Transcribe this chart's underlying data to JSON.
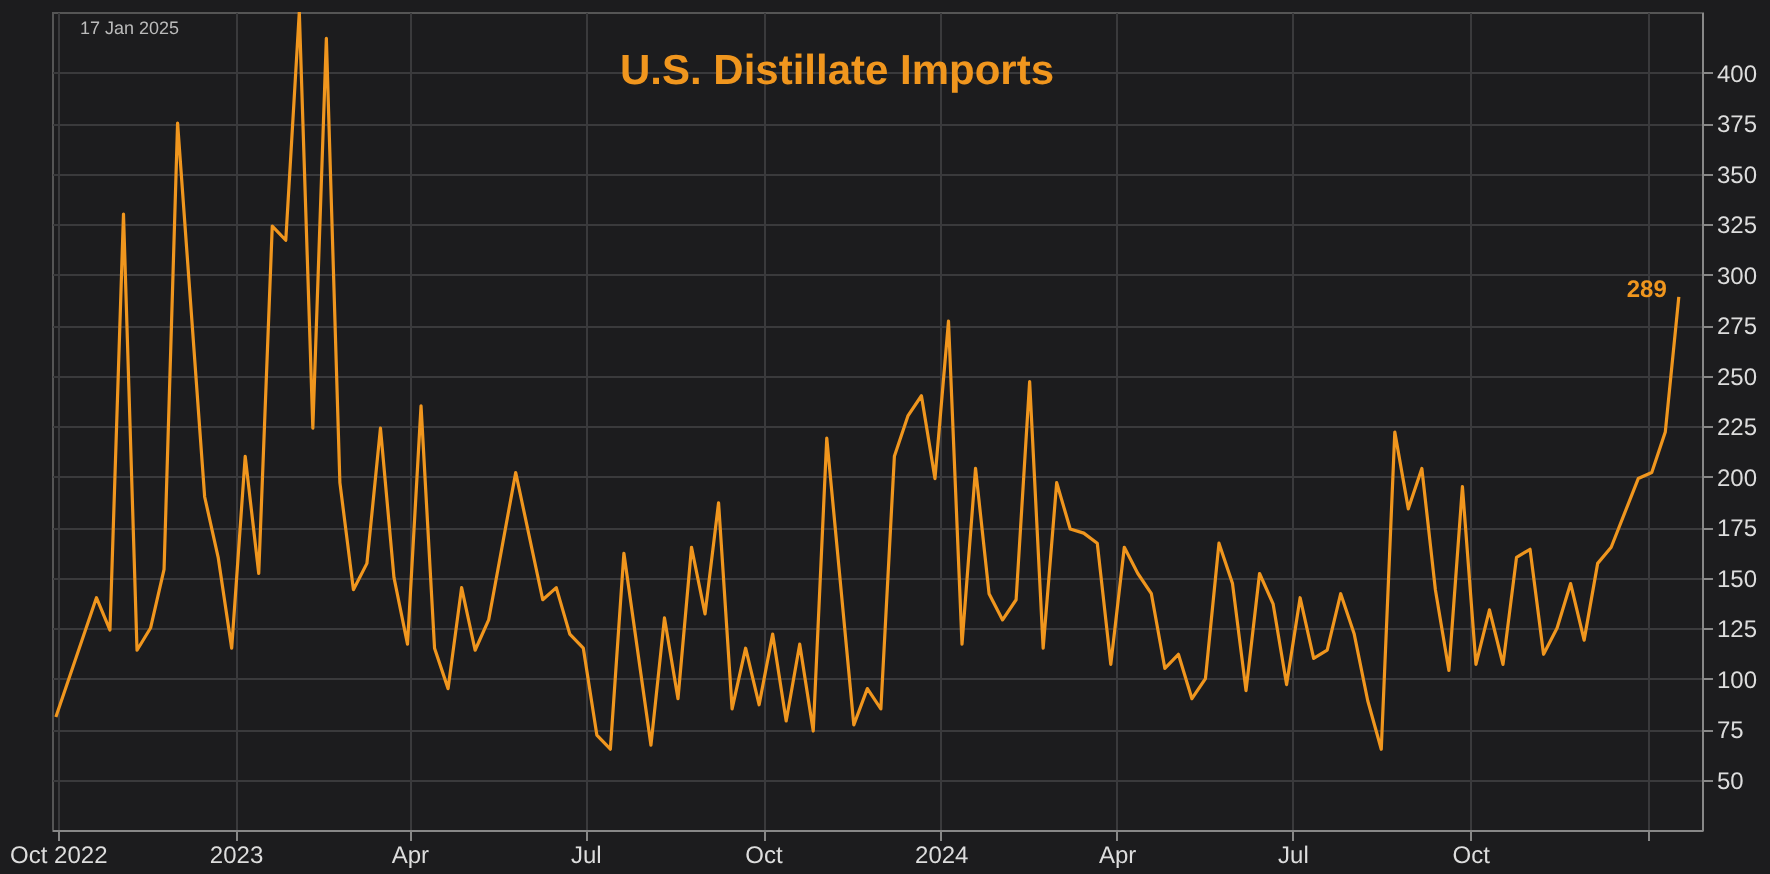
{
  "chart_data": {
    "type": "line",
    "title": "U.S. Distillate Imports",
    "x": [
      "2022-09-30",
      "2022-10-21",
      "2022-10-28",
      "2022-11-04",
      "2022-11-11",
      "2022-11-18",
      "2022-11-25",
      "2022-12-02",
      "2022-12-16",
      "2022-12-23",
      "2022-12-30",
      "2023-01-06",
      "2023-01-13",
      "2023-01-20",
      "2023-01-27",
      "2023-02-03",
      "2023-02-10",
      "2023-02-17",
      "2023-02-24",
      "2023-03-03",
      "2023-03-10",
      "2023-03-17",
      "2023-03-24",
      "2023-03-31",
      "2023-04-07",
      "2023-04-14",
      "2023-04-21",
      "2023-04-28",
      "2023-05-05",
      "2023-05-12",
      "2023-05-26",
      "2023-06-09",
      "2023-06-16",
      "2023-06-23",
      "2023-06-30",
      "2023-07-07",
      "2023-07-14",
      "2023-07-21",
      "2023-08-04",
      "2023-08-11",
      "2023-08-18",
      "2023-08-25",
      "2023-09-01",
      "2023-09-08",
      "2023-09-15",
      "2023-09-22",
      "2023-09-29",
      "2023-10-06",
      "2023-10-13",
      "2023-10-20",
      "2023-10-27",
      "2023-11-03",
      "2023-11-17",
      "2023-11-24",
      "2023-12-01",
      "2023-12-08",
      "2023-12-15",
      "2023-12-22",
      "2023-12-29",
      "2024-01-05",
      "2024-01-12",
      "2024-01-19",
      "2024-01-26",
      "2024-02-02",
      "2024-02-09",
      "2024-02-16",
      "2024-02-23",
      "2024-03-01",
      "2024-03-08",
      "2024-03-15",
      "2024-03-22",
      "2024-03-29",
      "2024-04-05",
      "2024-04-12",
      "2024-04-19",
      "2024-04-26",
      "2024-05-03",
      "2024-05-10",
      "2024-05-17",
      "2024-05-24",
      "2024-05-31",
      "2024-06-07",
      "2024-06-14",
      "2024-06-21",
      "2024-06-28",
      "2024-07-05",
      "2024-07-12",
      "2024-07-19",
      "2024-07-26",
      "2024-08-02",
      "2024-08-09",
      "2024-08-16",
      "2024-08-23",
      "2024-08-30",
      "2024-09-06",
      "2024-09-13",
      "2024-09-20",
      "2024-09-27",
      "2024-10-04",
      "2024-10-11",
      "2024-10-18",
      "2024-10-25",
      "2024-11-01",
      "2024-11-08",
      "2024-11-15",
      "2024-11-22",
      "2024-11-29",
      "2024-12-06",
      "2024-12-13",
      "2024-12-20",
      "2024-12-27",
      "2025-01-03",
      "2025-01-10",
      "2025-01-17"
    ],
    "series": [
      {
        "color": "#f0961e",
        "values": [
          81,
          140,
          124,
          330,
          114,
          125,
          154,
          375,
          190,
          160,
          115,
          210,
          152,
          324,
          317,
          430,
          224,
          417,
          197,
          144,
          157,
          224,
          150,
          117,
          235,
          115,
          95,
          145,
          114,
          129,
          202,
          139,
          145,
          122,
          115,
          72,
          65,
          162,
          67,
          130,
          90,
          165,
          132,
          187,
          85,
          115,
          87,
          122,
          79,
          117,
          74,
          219,
          77,
          95,
          85,
          210,
          230,
          240,
          199,
          277,
          117,
          204,
          142,
          129,
          139,
          247,
          115,
          197,
          174,
          172,
          167,
          107,
          165,
          152,
          142,
          105,
          112,
          90,
          100,
          167,
          147,
          94,
          152,
          137,
          97,
          140,
          110,
          114,
          142,
          122,
          89,
          65,
          222,
          184,
          204,
          144,
          104,
          195,
          107,
          134,
          107,
          160,
          164,
          112,
          125,
          147,
          119,
          157,
          165,
          182,
          199,
          202,
          222,
          289
        ]
      }
    ],
    "xlim": [
      "2022-09-28",
      "2025-01-29"
    ],
    "xticks": [
      {
        "value": "2022-10-01",
        "label": "Oct 2022"
      },
      {
        "value": "2023-01-01",
        "label": "2023"
      },
      {
        "value": "2023-04-01",
        "label": "Apr"
      },
      {
        "value": "2023-07-01",
        "label": "Jul"
      },
      {
        "value": "2023-10-01",
        "label": "Oct"
      },
      {
        "value": "2024-01-01",
        "label": "2024"
      },
      {
        "value": "2024-04-01",
        "label": "Apr"
      },
      {
        "value": "2024-07-01",
        "label": "Jul"
      },
      {
        "value": "2024-10-01",
        "label": "Oct"
      },
      {
        "value": "2025-01-01",
        "label": null
      }
    ],
    "ylim": [
      25,
      430
    ],
    "yticks": [
      50,
      75,
      100,
      125,
      150,
      175,
      200,
      225,
      250,
      275,
      300,
      325,
      350,
      375,
      400
    ],
    "grid": true,
    "annotations": [
      "17 Jan 2025",
      {
        "text": "289",
        "x": "2025-01-17",
        "y": 289
      }
    ]
  }
}
